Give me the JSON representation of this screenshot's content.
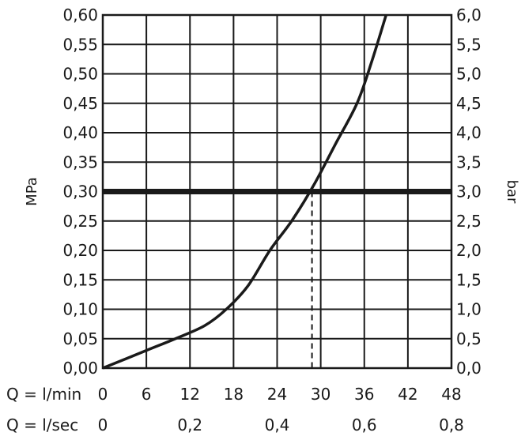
{
  "chart_data": {
    "type": "line",
    "title": "",
    "ylabel_left": "MPa",
    "ylabel_right": "bar",
    "x_primary_label": "Q = l/min",
    "x_secondary_label": "Q = l/sec",
    "xlim": [
      0,
      48
    ],
    "ylim": [
      0,
      0.6
    ],
    "ylim_right": [
      0,
      6
    ],
    "grid": true,
    "x_ticks": [
      "0",
      "6",
      "12",
      "18",
      "24",
      "30",
      "36",
      "42",
      "48"
    ],
    "x_tick_values": [
      0,
      6,
      12,
      18,
      24,
      30,
      36,
      42,
      48
    ],
    "x2_ticks": [
      "0",
      "0,2",
      "0,4",
      "0,6",
      "0,8"
    ],
    "x2_tick_values": [
      0,
      0.2,
      0.4,
      0.6,
      0.8
    ],
    "y_ticks_left": [
      "0,00",
      "0,05",
      "0,10",
      "0,15",
      "0,20",
      "0,25",
      "0,30",
      "0,35",
      "0,40",
      "0,45",
      "0,50",
      "0,55",
      "0,60"
    ],
    "y_ticks_right": [
      "0,0",
      "0,5",
      "1,0",
      "1,5",
      "2,0",
      "2,5",
      "3,0",
      "3,5",
      "4,0",
      "4,5",
      "5,0",
      "5,5",
      "6,0"
    ],
    "y_tick_values": [
      0,
      0.05,
      0.1,
      0.15,
      0.2,
      0.25,
      0.3,
      0.35,
      0.4,
      0.45,
      0.5,
      0.55,
      0.6
    ],
    "series": [
      {
        "x": [
          0,
          6,
          10,
          14,
          17,
          20,
          23,
          26,
          29,
          32,
          35,
          37,
          39
        ],
        "values": [
          0,
          0.03,
          0.05,
          0.072,
          0.1,
          0.14,
          0.2,
          0.25,
          0.31,
          0.38,
          0.45,
          0.52,
          0.6
        ]
      }
    ],
    "reference_line": {
      "y": 0.3
    },
    "marker": {
      "x": 28.8,
      "y": 0.3
    }
  }
}
